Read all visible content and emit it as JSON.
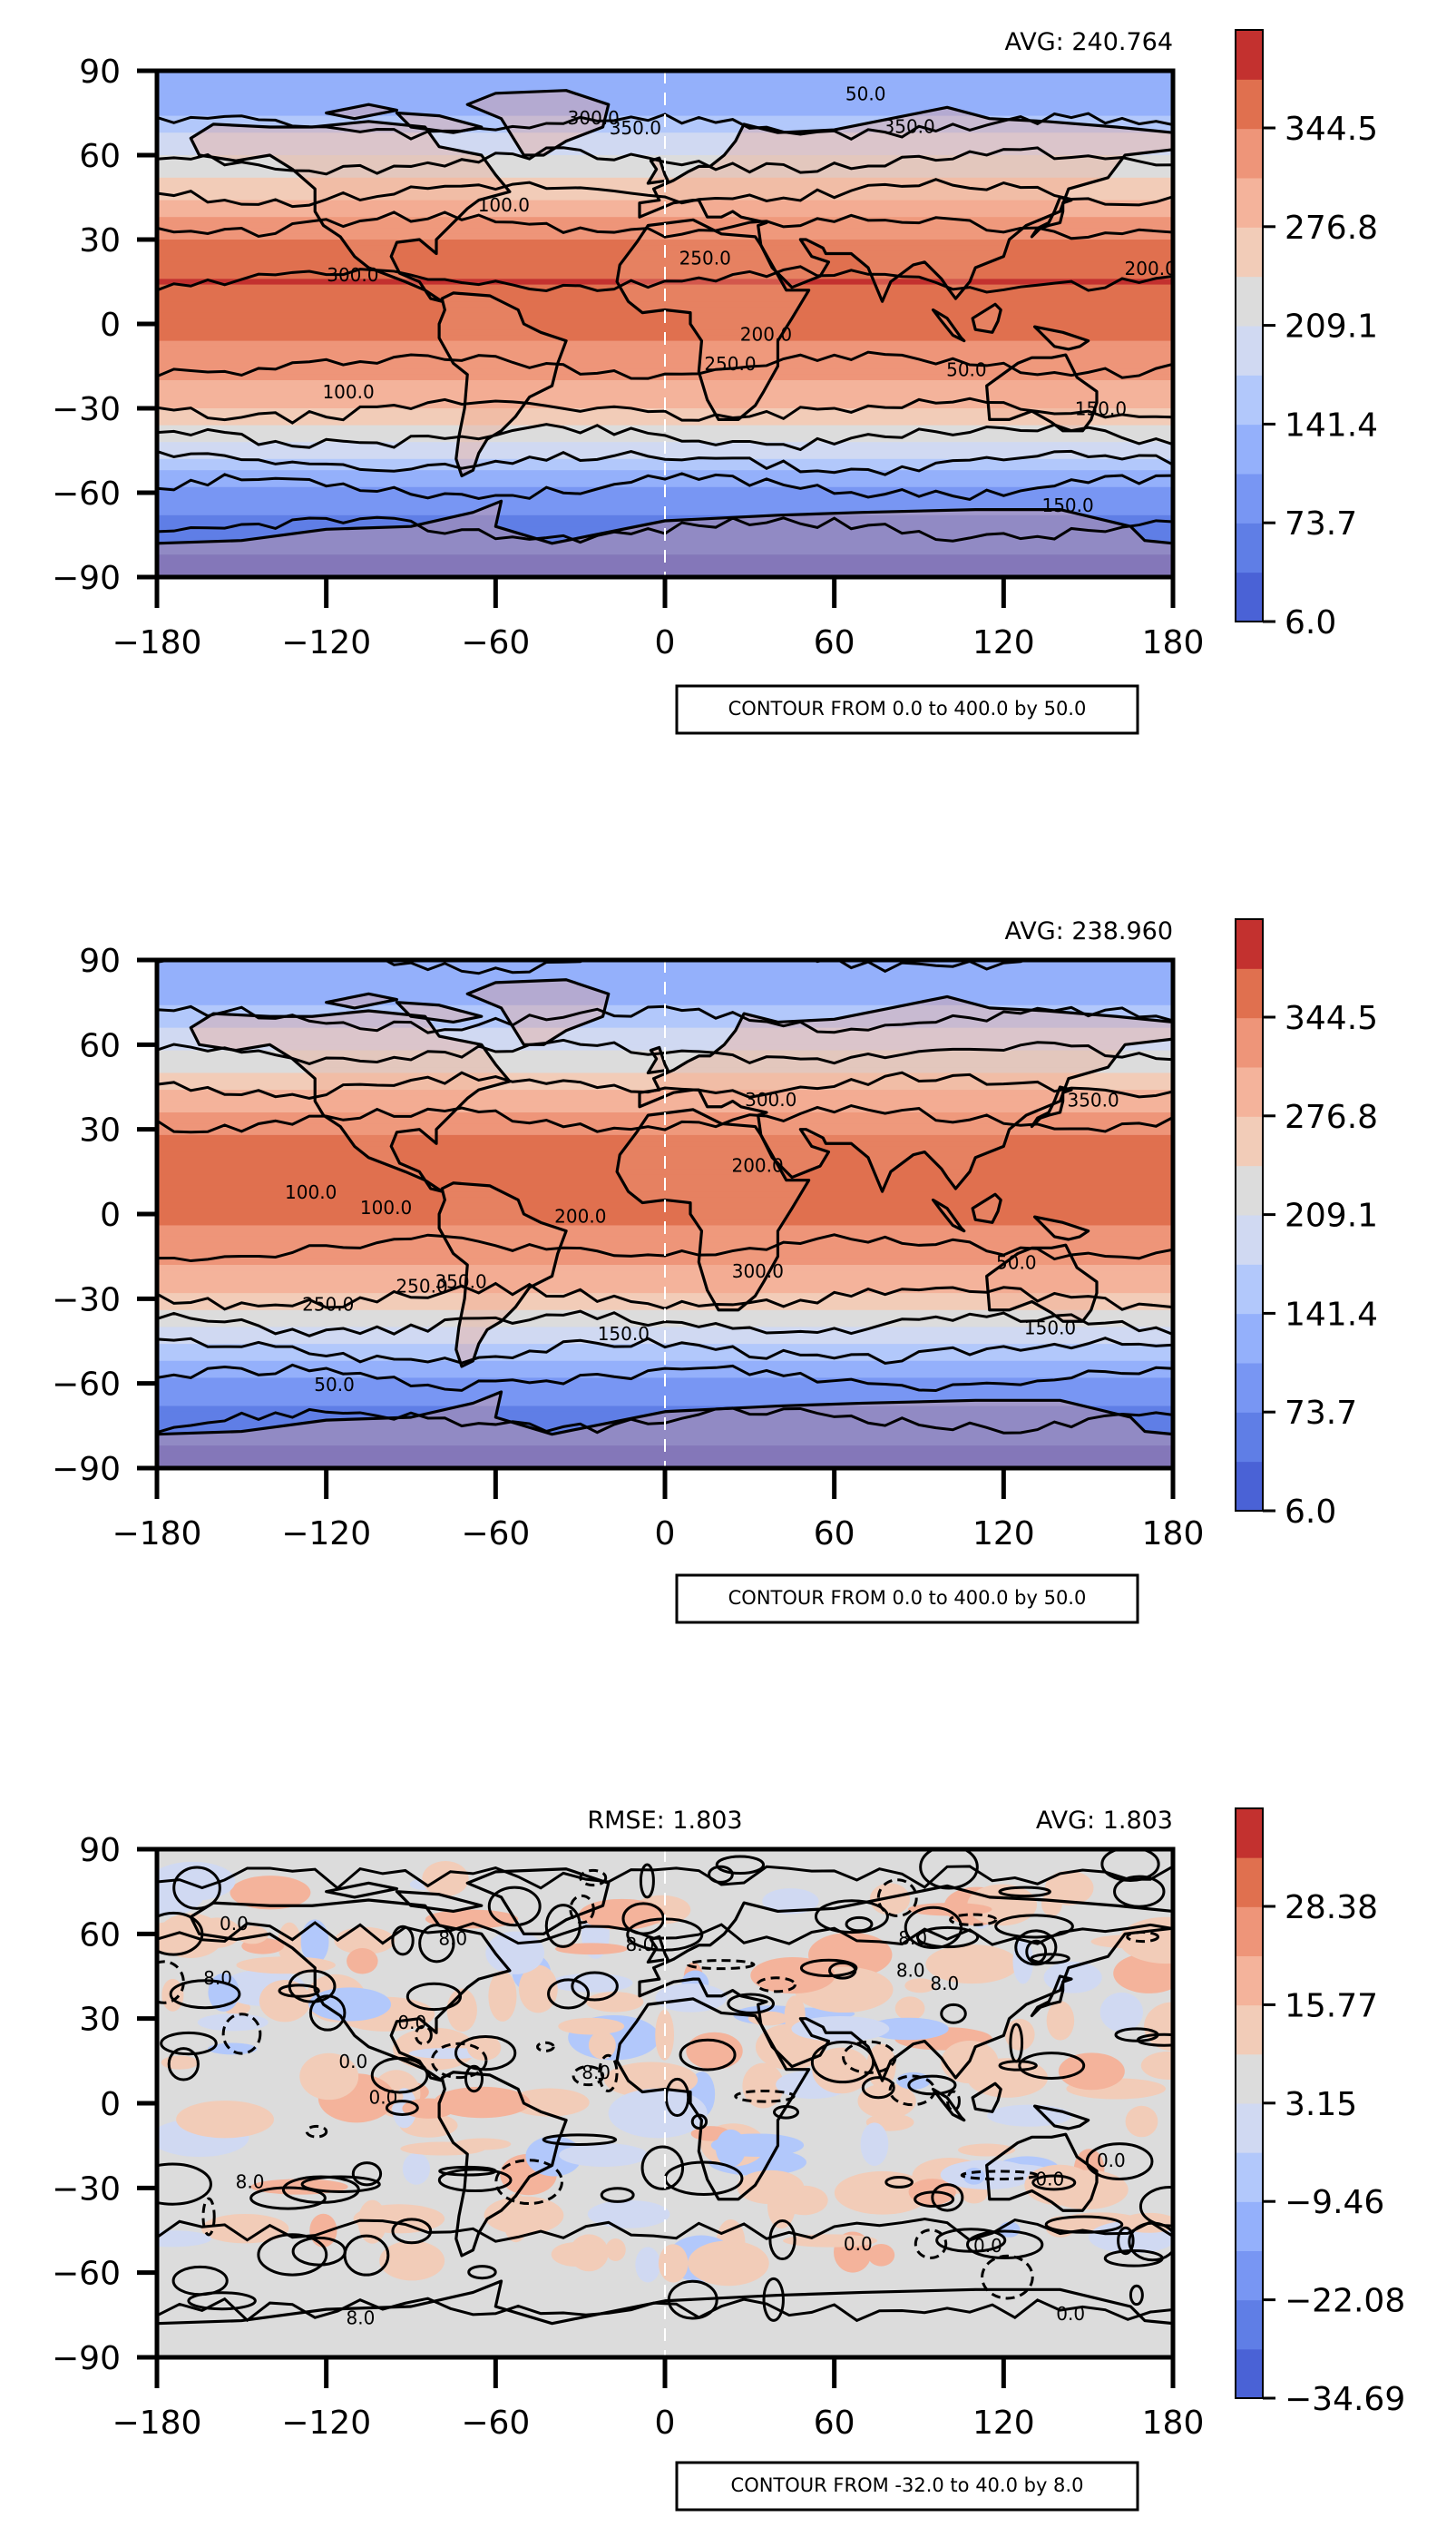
{
  "chart_data": [
    {
      "type": "heatmap",
      "panel": "top",
      "stats": {
        "avg": "AVG: 240.764"
      },
      "note": "CONTOUR FROM 0.0 to 400.0 by 50.0",
      "x_ticks": [
        "−180",
        "−120",
        "−60",
        "0",
        "60",
        "120",
        "180"
      ],
      "y_ticks": [
        "90",
        "60",
        "30",
        "0",
        "−30",
        "−60",
        "−90"
      ],
      "xlim": [
        -180,
        180
      ],
      "ylim": [
        -90,
        90
      ],
      "colorbar": {
        "range": [
          6.0,
          380.0
        ],
        "tick_labels": [
          "344.5",
          "276.8",
          "209.1",
          "141.4",
          "73.7",
          "6.0"
        ]
      },
      "contour_labels": [
        "100.0",
        "150.0",
        "200.0",
        "250.0",
        "300.0",
        "350.0",
        "50.0"
      ],
      "zonal_profile": {
        "lat": [
          90,
          75,
          60,
          45,
          30,
          15,
          0,
          -15,
          -30,
          -45,
          -60,
          -75,
          -90
        ],
        "value": [
          105,
          130,
          190,
          255,
          320,
          350,
          330,
          300,
          255,
          175,
          90,
          45,
          30
        ]
      },
      "grid": false
    },
    {
      "type": "heatmap",
      "panel": "middle",
      "stats": {
        "avg": "AVG: 238.960"
      },
      "note": "CONTOUR FROM 0.0 to 400.0 by 50.0",
      "x_ticks": [
        "−180",
        "−120",
        "−60",
        "0",
        "60",
        "120",
        "180"
      ],
      "y_ticks": [
        "90",
        "60",
        "30",
        "0",
        "−30",
        "−60",
        "−90"
      ],
      "xlim": [
        -180,
        180
      ],
      "ylim": [
        -90,
        90
      ],
      "colorbar": {
        "range": [
          6.0,
          380.0
        ],
        "tick_labels": [
          "344.5",
          "276.8",
          "209.1",
          "141.4",
          "73.7",
          "6.0"
        ]
      },
      "contour_labels": [
        "100.0",
        "150.0",
        "200.0",
        "250.0",
        "300.0",
        "350.0",
        "50.0"
      ],
      "zonal_profile": {
        "lat": [
          90,
          75,
          60,
          45,
          30,
          15,
          0,
          -15,
          -30,
          -45,
          -60,
          -75,
          -90
        ],
        "value": [
          100,
          125,
          185,
          250,
          315,
          345,
          325,
          295,
          250,
          170,
          90,
          45,
          30
        ]
      },
      "grid": false
    },
    {
      "type": "heatmap",
      "panel": "bottom",
      "stats": {
        "rmse": "RMSE: 1.803",
        "avg": "AVG: 1.803"
      },
      "note": "CONTOUR FROM -32.0 to 40.0 by 8.0",
      "x_ticks": [
        "−180",
        "−120",
        "−60",
        "0",
        "60",
        "120",
        "180"
      ],
      "y_ticks": [
        "90",
        "60",
        "30",
        "0",
        "−30",
        "−60",
        "−90"
      ],
      "xlim": [
        -180,
        180
      ],
      "ylim": [
        -90,
        90
      ],
      "colorbar": {
        "range": [
          -34.69,
          34.69
        ],
        "tick_labels": [
          "28.38",
          "15.77",
          "3.15",
          "−9.46",
          "−22.08",
          "−34.69"
        ]
      },
      "contour_labels": [
        "0.0",
        "8.0"
      ],
      "grid": false
    }
  ],
  "colors": {
    "blue_dark": "#4a62d6",
    "blue_mid": "#8aaafa",
    "gray_mid": "#dcdcdc",
    "red_mid": "#f3a385",
    "red_dark": "#c3312f"
  }
}
